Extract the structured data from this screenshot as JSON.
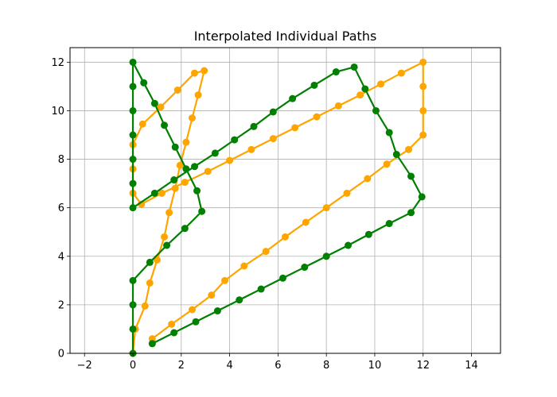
{
  "chart_data": {
    "type": "line",
    "title": "Interpolated Individual Paths",
    "xlabel": "",
    "ylabel": "",
    "xlim": [
      -2.6,
      15.2
    ],
    "ylim": [
      0,
      12.6
    ],
    "xticks": [
      -2,
      0,
      2,
      4,
      6,
      8,
      10,
      12,
      14
    ],
    "yticks": [
      0,
      2,
      4,
      6,
      8,
      10,
      12
    ],
    "grid": true,
    "legend": "none",
    "series": [
      {
        "color": "#ffa500",
        "points": [
          [
            0.0,
            0.0
          ],
          [
            0.1,
            1.0
          ],
          [
            0.5,
            1.95
          ],
          [
            0.7,
            2.9
          ],
          [
            1.0,
            3.85
          ],
          [
            1.3,
            4.8
          ],
          [
            1.5,
            5.8
          ],
          [
            1.75,
            6.8
          ],
          [
            1.95,
            7.75
          ],
          [
            2.2,
            8.7
          ],
          [
            2.45,
            9.7
          ],
          [
            2.7,
            10.65
          ],
          [
            2.95,
            11.65
          ],
          [
            2.55,
            11.55
          ],
          [
            1.85,
            10.85
          ],
          [
            1.15,
            10.15
          ],
          [
            0.4,
            9.45
          ],
          [
            0.0,
            8.6
          ],
          [
            0.0,
            7.6
          ],
          [
            0.0,
            6.6
          ],
          [
            0.35,
            6.15
          ],
          [
            1.2,
            6.6
          ],
          [
            2.15,
            7.05
          ],
          [
            3.1,
            7.5
          ],
          [
            4.0,
            7.95
          ],
          [
            4.9,
            8.4
          ],
          [
            5.8,
            8.85
          ],
          [
            6.7,
            9.3
          ],
          [
            7.6,
            9.75
          ],
          [
            8.5,
            10.2
          ],
          [
            9.4,
            10.65
          ],
          [
            10.25,
            11.1
          ],
          [
            11.1,
            11.55
          ],
          [
            12.0,
            12.0
          ],
          [
            12.0,
            11.0
          ],
          [
            12.0,
            10.0
          ],
          [
            12.0,
            9.0
          ],
          [
            11.4,
            8.4
          ],
          [
            10.5,
            7.8
          ],
          [
            9.7,
            7.2
          ],
          [
            8.85,
            6.6
          ],
          [
            8.0,
            6.0
          ],
          [
            7.15,
            5.4
          ],
          [
            6.3,
            4.8
          ],
          [
            5.5,
            4.2
          ],
          [
            4.6,
            3.6
          ],
          [
            3.8,
            3.0
          ],
          [
            3.25,
            2.4
          ],
          [
            2.45,
            1.8
          ],
          [
            1.6,
            1.2
          ],
          [
            0.8,
            0.6
          ],
          [
            0.8,
            0.4
          ]
        ]
      },
      {
        "color": "#008000",
        "points": [
          [
            0.8,
            0.4
          ],
          [
            1.7,
            0.85
          ],
          [
            2.6,
            1.3
          ],
          [
            3.5,
            1.75
          ],
          [
            4.4,
            2.2
          ],
          [
            5.3,
            2.65
          ],
          [
            6.2,
            3.1
          ],
          [
            7.1,
            3.55
          ],
          [
            8.0,
            4.0
          ],
          [
            8.9,
            4.45
          ],
          [
            9.75,
            4.9
          ],
          [
            10.6,
            5.35
          ],
          [
            11.5,
            5.8
          ],
          [
            11.95,
            6.45
          ],
          [
            11.5,
            7.3
          ],
          [
            10.9,
            8.2
          ],
          [
            10.6,
            9.1
          ],
          [
            10.05,
            10.0
          ],
          [
            9.6,
            10.9
          ],
          [
            9.15,
            11.8
          ],
          [
            8.4,
            11.6
          ],
          [
            7.5,
            11.05
          ],
          [
            6.6,
            10.5
          ],
          [
            5.8,
            9.95
          ],
          [
            5.0,
            9.35
          ],
          [
            4.2,
            8.8
          ],
          [
            3.4,
            8.25
          ],
          [
            2.55,
            7.7
          ],
          [
            1.7,
            7.15
          ],
          [
            0.9,
            6.6
          ],
          [
            0.0,
            6.0
          ],
          [
            0.0,
            7.0
          ],
          [
            0.0,
            8.0
          ],
          [
            0.0,
            9.0
          ],
          [
            0.0,
            10.0
          ],
          [
            0.0,
            11.0
          ],
          [
            0.0,
            12.0
          ],
          [
            0.45,
            11.15
          ],
          [
            0.9,
            10.3
          ],
          [
            1.3,
            9.4
          ],
          [
            1.75,
            8.5
          ],
          [
            2.2,
            7.6
          ],
          [
            2.65,
            6.7
          ],
          [
            2.85,
            5.85
          ],
          [
            2.15,
            5.15
          ],
          [
            1.4,
            4.45
          ],
          [
            0.7,
            3.75
          ],
          [
            0.0,
            3.0
          ],
          [
            0.0,
            2.0
          ],
          [
            0.0,
            1.0
          ],
          [
            0.0,
            0.0
          ]
        ]
      }
    ]
  }
}
